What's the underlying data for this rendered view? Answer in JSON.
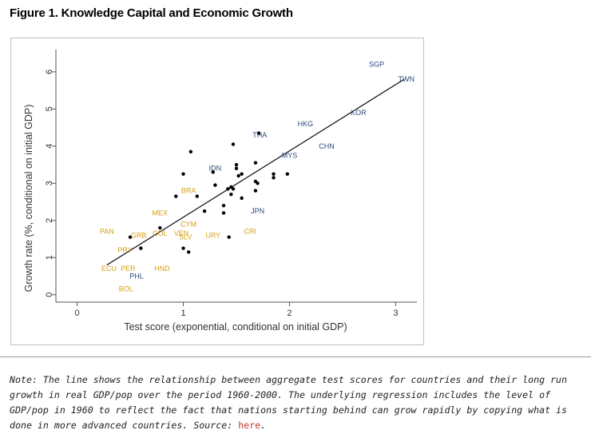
{
  "figure_title": "Figure 1. Knowledge Capital and Economic Growth",
  "note": {
    "text": "Note:  The line shows the relationship between aggregate test scores for countries and their long run growth in real GDP/pop over the period 1960-2000.  The underlying regression includes the level of GDP/pop in 1960 to reflect the fact that nations starting behind can grow rapidly by copying what is done in more advanced countries.  Source: ",
    "source_link": "here",
    "source_end": "."
  },
  "colors": {
    "high_label": "#2c4a7c",
    "low_label": "#d4a017",
    "point": "#000000",
    "line": "#1a1a1a",
    "link": "#c0392b"
  },
  "chart_data": {
    "type": "scatter",
    "title": "Figure 1. Knowledge Capital and Economic Growth",
    "xlabel": "Test score (exponential, conditional on initial GDP)",
    "ylabel": "Growth rate (%, conditional on initial GDP)",
    "xlim": [
      -0.2,
      3.2
    ],
    "ylim": [
      -0.2,
      6.6
    ],
    "xticks": [
      0,
      1,
      2,
      3
    ],
    "yticks": [
      0,
      1,
      2,
      3,
      4,
      5,
      6
    ],
    "fit_line": {
      "x": [
        0.28,
        3.08
      ],
      "y": [
        0.8,
        5.8
      ]
    },
    "labeled_points": [
      {
        "label": "SGP",
        "x": 2.82,
        "y": 6.2,
        "group": "high"
      },
      {
        "label": "TWN",
        "x": 3.1,
        "y": 5.8,
        "group": "high"
      },
      {
        "label": "KOR",
        "x": 2.65,
        "y": 4.9,
        "group": "high"
      },
      {
        "label": "HKG",
        "x": 2.15,
        "y": 4.6,
        "group": "high"
      },
      {
        "label": "THA",
        "x": 1.72,
        "y": 4.3,
        "group": "high"
      },
      {
        "label": "CHN",
        "x": 2.35,
        "y": 4.0,
        "group": "high"
      },
      {
        "label": "MYS",
        "x": 2.0,
        "y": 3.75,
        "group": "high"
      },
      {
        "label": "IDN",
        "x": 1.3,
        "y": 3.4,
        "group": "high"
      },
      {
        "label": "JPN",
        "x": 1.7,
        "y": 2.25,
        "group": "high"
      },
      {
        "label": "PHL",
        "x": 0.56,
        "y": 0.5,
        "group": "high"
      },
      {
        "label": "BRA",
        "x": 1.05,
        "y": 2.8,
        "group": "low"
      },
      {
        "label": "MEX",
        "x": 0.78,
        "y": 2.2,
        "group": "low"
      },
      {
        "label": "CYM",
        "x": 1.05,
        "y": 1.9,
        "group": "low"
      },
      {
        "label": "PAN",
        "x": 0.28,
        "y": 1.7,
        "group": "low"
      },
      {
        "label": "GRB",
        "x": 0.58,
        "y": 1.6,
        "group": "low"
      },
      {
        "label": "COL",
        "x": 0.78,
        "y": 1.65,
        "group": "low"
      },
      {
        "label": "VEN",
        "x": 0.98,
        "y": 1.65,
        "group": "low"
      },
      {
        "label": "SLV",
        "x": 1.02,
        "y": 1.55,
        "group": "low"
      },
      {
        "label": "URY",
        "x": 1.28,
        "y": 1.6,
        "group": "low"
      },
      {
        "label": "CRI",
        "x": 1.63,
        "y": 1.7,
        "group": "low"
      },
      {
        "label": "PRY",
        "x": 0.45,
        "y": 1.2,
        "group": "low"
      },
      {
        "label": "ECU",
        "x": 0.3,
        "y": 0.7,
        "group": "low"
      },
      {
        "label": "PER",
        "x": 0.48,
        "y": 0.7,
        "group": "low"
      },
      {
        "label": "HND",
        "x": 0.8,
        "y": 0.7,
        "group": "low"
      },
      {
        "label": "BOL",
        "x": 0.46,
        "y": 0.15,
        "group": "low"
      }
    ],
    "dots": [
      {
        "x": 1.07,
        "y": 3.85
      },
      {
        "x": 1.0,
        "y": 3.25
      },
      {
        "x": 0.93,
        "y": 2.65
      },
      {
        "x": 1.13,
        "y": 2.65
      },
      {
        "x": 1.2,
        "y": 2.25
      },
      {
        "x": 1.28,
        "y": 3.3
      },
      {
        "x": 1.3,
        "y": 2.95
      },
      {
        "x": 1.38,
        "y": 2.4
      },
      {
        "x": 1.38,
        "y": 2.2
      },
      {
        "x": 1.42,
        "y": 2.85
      },
      {
        "x": 1.45,
        "y": 2.9
      },
      {
        "x": 1.45,
        "y": 2.7
      },
      {
        "x": 1.47,
        "y": 2.85
      },
      {
        "x": 1.47,
        "y": 4.05
      },
      {
        "x": 1.5,
        "y": 3.5
      },
      {
        "x": 1.5,
        "y": 3.4
      },
      {
        "x": 1.52,
        "y": 3.2
      },
      {
        "x": 1.55,
        "y": 3.25
      },
      {
        "x": 1.55,
        "y": 2.6
      },
      {
        "x": 1.68,
        "y": 3.55
      },
      {
        "x": 1.68,
        "y": 3.05
      },
      {
        "x": 1.7,
        "y": 3.0
      },
      {
        "x": 1.68,
        "y": 2.8
      },
      {
        "x": 1.85,
        "y": 3.25
      },
      {
        "x": 1.85,
        "y": 3.15
      },
      {
        "x": 1.98,
        "y": 3.25
      },
      {
        "x": 1.71,
        "y": 4.35
      },
      {
        "x": 1.43,
        "y": 1.55
      },
      {
        "x": 1.0,
        "y": 1.25
      },
      {
        "x": 1.05,
        "y": 1.15
      },
      {
        "x": 0.6,
        "y": 1.25
      },
      {
        "x": 0.5,
        "y": 1.55
      },
      {
        "x": 0.78,
        "y": 1.8
      }
    ]
  }
}
